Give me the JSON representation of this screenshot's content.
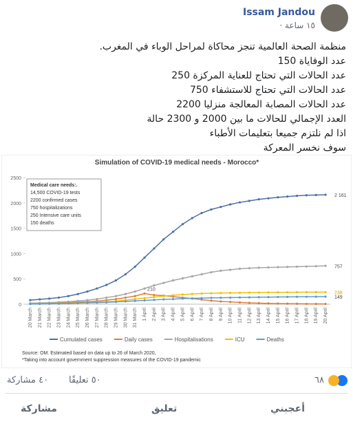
{
  "header": {
    "name": "Issam Jandou",
    "time": "١٥ ساعة ·"
  },
  "post": {
    "lines": [
      "منظمة الصحة العالمية تنجز محاكاة لمراحل الوباء في المغرب.",
      "عدد الوفاياة 150",
      "عدد الحالات التي تحتاج للعناية المركزة 250",
      "عدد الحالات التي تحتاج للاستشفاء 750",
      "عدد الحالات المصابة المعالجة منزليا 2200",
      "العدد الإجمالي للحالات ما بين 2000 و 2300 حالة",
      "اذا لم نلتزم جميعا بتعليمات الأطباء",
      "سوف نخسر المعركة"
    ]
  },
  "chart_data": {
    "type": "line",
    "title": "Simulation of COVID-19 medical needs - Morocco*",
    "categories": [
      "20 March",
      "21 March",
      "22 March",
      "23 March",
      "24 March",
      "25 March",
      "26 March",
      "27 March",
      "28 March",
      "29 March",
      "30 March",
      "31 March",
      "1 April",
      "2 April",
      "3 April",
      "4 April",
      "5 April",
      "6 April",
      "7 April",
      "8 April",
      "9 April",
      "10 April",
      "11 April",
      "12 April",
      "13 April",
      "14 April",
      "15 April",
      "16 April",
      "17 April",
      "18 April",
      "19 April",
      "20 April"
    ],
    "series": [
      {
        "name": "Cumulated cases",
        "color": "#4a6fa5",
        "values": [
          80,
          95,
          110,
          130,
          160,
          200,
          250,
          310,
          380,
          470,
          590,
          740,
          920,
          1100,
          1280,
          1430,
          1580,
          1700,
          1800,
          1870,
          1920,
          1970,
          2010,
          2040,
          2070,
          2090,
          2110,
          2125,
          2140,
          2150,
          2155,
          2161
        ],
        "value_labels": [
          null,
          null,
          null,
          null,
          null,
          null,
          null,
          null,
          null,
          null,
          null,
          null,
          null,
          null,
          null,
          null,
          null,
          null,
          null,
          null,
          null,
          null,
          null,
          null,
          null,
          null,
          null,
          null,
          null,
          null,
          null,
          "2 161"
        ]
      },
      {
        "name": "Daily cases",
        "color": "#e07b39",
        "values": [
          10,
          15,
          20,
          25,
          30,
          40,
          50,
          60,
          80,
          100,
          130,
          160,
          210,
          180,
          170,
          150,
          130,
          110,
          90,
          70,
          55,
          45,
          35,
          25,
          20,
          15,
          12,
          10,
          8,
          6,
          5,
          5
        ],
        "value_labels": [
          null,
          null,
          null,
          null,
          null,
          null,
          null,
          null,
          null,
          null,
          null,
          null,
          "210",
          null,
          null,
          null,
          null,
          null,
          null,
          null,
          null,
          null,
          null,
          null,
          null,
          null,
          null,
          null,
          null,
          null,
          null,
          null
        ]
      },
      {
        "name": "Hospitalisations",
        "color": "#a5a5a5",
        "values": [
          20,
          25,
          30,
          40,
          50,
          65,
          80,
          100,
          130,
          160,
          200,
          250,
          310,
          370,
          420,
          470,
          510,
          550,
          590,
          630,
          660,
          680,
          700,
          710,
          720,
          725,
          730,
          735,
          740,
          745,
          750,
          757
        ],
        "value_labels": [
          null,
          null,
          null,
          null,
          null,
          null,
          null,
          null,
          null,
          null,
          null,
          null,
          null,
          null,
          null,
          null,
          null,
          null,
          null,
          null,
          null,
          null,
          null,
          null,
          null,
          null,
          null,
          null,
          null,
          null,
          null,
          "757"
        ]
      },
      {
        "name": "ICU",
        "color": "#f0c000",
        "values": [
          5,
          8,
          10,
          15,
          20,
          25,
          30,
          40,
          50,
          60,
          80,
          100,
          120,
          140,
          160,
          175,
          190,
          200,
          210,
          215,
          220,
          222,
          225,
          228,
          230,
          232,
          234,
          235,
          236,
          237,
          238,
          238
        ],
        "value_labels": [
          null,
          null,
          null,
          null,
          null,
          null,
          null,
          null,
          null,
          null,
          null,
          null,
          null,
          null,
          null,
          null,
          null,
          null,
          null,
          null,
          null,
          null,
          null,
          null,
          null,
          null,
          null,
          null,
          null,
          null,
          null,
          "238"
        ]
      },
      {
        "name": "Deaths",
        "color": "#5b9bd5",
        "values": [
          3,
          5,
          8,
          10,
          15,
          20,
          25,
          30,
          35,
          45,
          55,
          65,
          75,
          85,
          95,
          100,
          110,
          115,
          120,
          125,
          128,
          130,
          133,
          135,
          138,
          140,
          142,
          144,
          146,
          147,
          148,
          149
        ],
        "value_labels": [
          null,
          null,
          null,
          null,
          null,
          null,
          null,
          null,
          null,
          null,
          null,
          null,
          null,
          null,
          null,
          null,
          null,
          null,
          null,
          null,
          null,
          null,
          null,
          null,
          null,
          null,
          null,
          null,
          null,
          null,
          null,
          "149"
        ]
      }
    ],
    "ylim": [
      0,
      2500
    ],
    "yticks": [
      0,
      500,
      1000,
      1500,
      2000,
      2500
    ],
    "grid": false,
    "note_box": [
      "Medical care needs:.",
      "14,500 COVID-19 tests",
      "2200 confirmed cases",
      "750 hospitalizations",
      "250 Intensive care units",
      "150 deaths"
    ],
    "source": [
      "Source: OM. Estimated based on data up to 26 of March 2020,",
      "*Taking into account government suppression measures of the COVID-19 pandemic"
    ]
  },
  "footer": {
    "reactions": "٦٨",
    "comments": "٥٠ تعليقًا",
    "shares": "٤٠ مشاركة",
    "like": "أعجبني",
    "comment": "تعليق",
    "share": "مشاركة"
  }
}
